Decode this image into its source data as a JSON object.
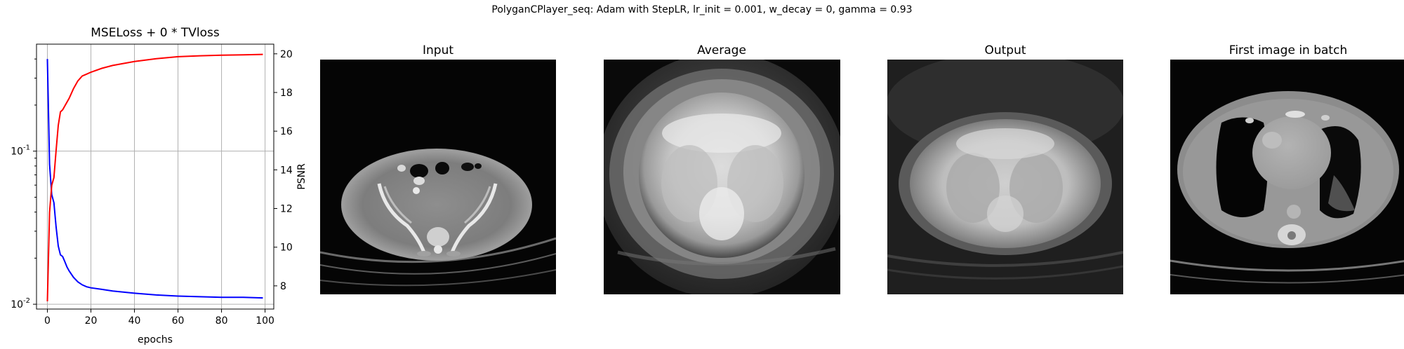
{
  "suptitle": "PolyganCPlayer_seq: Adam with StepLR, lr_init = 0.001, w_decay = 0, gamma = 0.93",
  "chart_data": [
    {
      "type": "line",
      "title": "MSELoss + 0 * TVloss",
      "xlabel": "epochs",
      "ylabel": "",
      "y2label": "PSNR",
      "xlim": [
        -5,
        104
      ],
      "xticks": [
        "0",
        "20",
        "40",
        "60",
        "80",
        "100"
      ],
      "xtick_values": [
        0,
        20,
        40,
        60,
        80,
        100
      ],
      "ylim": [
        0.0093,
        0.5
      ],
      "yscale": "log",
      "yticks": [
        "10^-1",
        "10^-2"
      ],
      "ytick_values": [
        0.1,
        0.01
      ],
      "y2lim": [
        6.8,
        20.5
      ],
      "y2ticks": [
        "8",
        "10",
        "12",
        "14",
        "16",
        "18",
        "20"
      ],
      "y2tick_values": [
        8,
        10,
        12,
        14,
        16,
        18,
        20
      ],
      "grid": true,
      "series": [
        {
          "color": "#0000ff",
          "axis": "left",
          "x": [
            0,
            1,
            2,
            3,
            4,
            5,
            6,
            7,
            8,
            9,
            10,
            12,
            14,
            16,
            18,
            20,
            25,
            30,
            40,
            50,
            60,
            70,
            80,
            90,
            99
          ],
          "y": [
            0.4,
            0.082,
            0.052,
            0.046,
            0.032,
            0.024,
            0.021,
            0.0205,
            0.019,
            0.0175,
            0.0165,
            0.015,
            0.014,
            0.0134,
            0.013,
            0.0128,
            0.0125,
            0.0122,
            0.0118,
            0.0115,
            0.0113,
            0.0112,
            0.0111,
            0.0111,
            0.011
          ]
        },
        {
          "color": "#ff0000",
          "axis": "right",
          "x": [
            0,
            1,
            2,
            3,
            4,
            5,
            6,
            7,
            8,
            10,
            12,
            14,
            16,
            18,
            20,
            25,
            30,
            40,
            50,
            60,
            70,
            80,
            90,
            99
          ],
          "y": [
            7.2,
            11.8,
            13.2,
            13.6,
            15.0,
            16.3,
            17.0,
            17.1,
            17.3,
            17.7,
            18.2,
            18.6,
            18.85,
            18.95,
            19.05,
            19.25,
            19.4,
            19.6,
            19.75,
            19.85,
            19.9,
            19.93,
            19.95,
            19.97
          ]
        }
      ]
    }
  ],
  "panels": [
    {
      "title": "Input",
      "kind": "pelvis-ct"
    },
    {
      "title": "Average",
      "kind": "average-blur"
    },
    {
      "title": "Output",
      "kind": "output-noisy"
    },
    {
      "title": "First image in batch",
      "kind": "chest-ct"
    }
  ]
}
